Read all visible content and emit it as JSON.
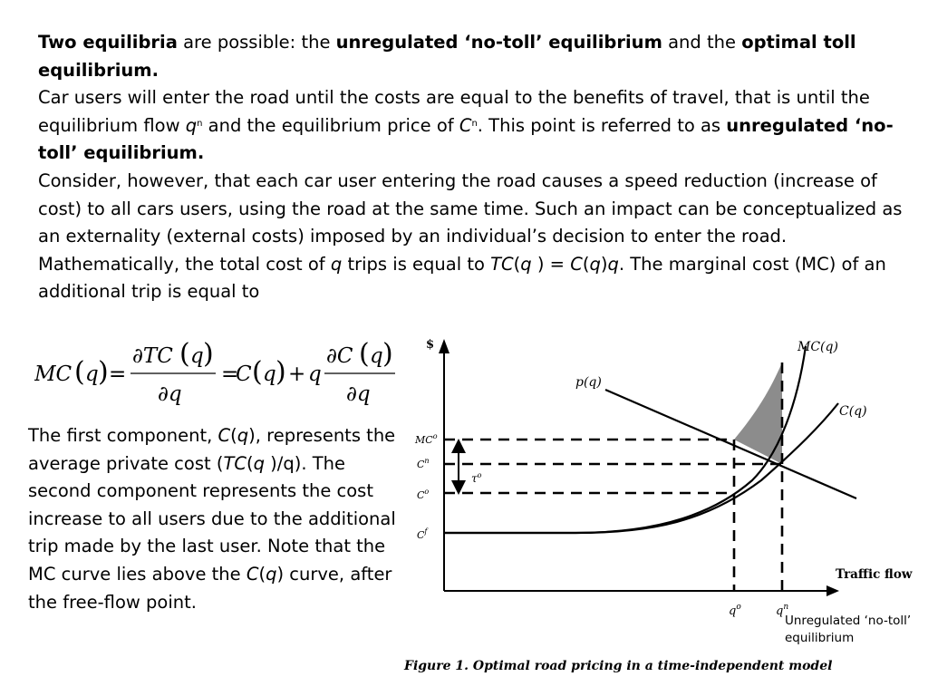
{
  "paragraphs": {
    "p1": {
      "b1": "Two equilibria",
      "t1": " are possible: the ",
      "b2": "unregulated ‘no-toll’ equilibrium",
      "t2": " and the ",
      "b3": "optimal toll equilibrium."
    },
    "p2": {
      "t1": "Car users will enter the road until the costs are equal to the benefits of travel, that is until the equilibrium flow ",
      "qn_base": "q",
      "qn_sup": "n",
      "t2": " and the equilibrium price of ",
      "cn_base": "C",
      "cn_sup": "n",
      "t3": ". This point is referred to as ",
      "b1": "unregulated ‘no-toll’ equilibrium."
    },
    "p3": {
      "t1": "Consider, however, that each car user entering the road causes a speed reduction (increase of cost) to all cars users, using the road at the same time. Such an impact can be conceptualized as an externality (external costs) imposed by an individual’s decision to enter the road."
    },
    "p4": {
      "t1": "Mathematically, the total cost of ",
      "i1": "q",
      "t2": " trips  is  equal to ",
      "i2": "TC",
      "t3": "(",
      "i3": "q",
      "t4": " ) = ",
      "i4": "C",
      "t5": "(",
      "i5": "q",
      "t6": ")",
      "i6": "q",
      "t7": ". The  marginal cost (MC) of  an  additional  trip  is equal to"
    }
  },
  "formula": {
    "mc": "MC",
    "q": "q",
    "paren_l": "(",
    "paren_r": ")",
    "eq": "=",
    "partial_tc": "∂TC",
    "partial_q": "∂q",
    "c": "C",
    "plus": "+",
    "partial_c": "∂C"
  },
  "side_text": {
    "t1": "The first component, ",
    "i1": "C",
    "t2": "(",
    "i2": "q",
    "t3": "), represents the average private cost (",
    "i3": "TC",
    "t4": "(",
    "i4": "q",
    "t5": " )/q). The second component represents the cost increase to all users due to the additional trip made by the last user. Note that the MC curve lies above the ",
    "i5": "C",
    "t6": "(",
    "i6": "q",
    "t7": ") curve, after the free-flow point."
  },
  "figure": {
    "y_axis_label": "$",
    "x_axis_label": "Traffic flow",
    "curve_mc_label": "MC(q)",
    "curve_p_label": "p(q)",
    "curve_c_label": "C(q)",
    "y_tick_mco": "MC",
    "y_tick_mco_sup": "o",
    "y_tick_cn": "C",
    "y_tick_cn_sup": "n",
    "y_tick_co": "C",
    "y_tick_co_sup": "o",
    "y_tick_cf": "C",
    "y_tick_cf_sup": "f",
    "toll_label": "τ",
    "toll_sup": "o",
    "x_tick_qo": "q",
    "x_tick_qo_sup": "o",
    "x_tick_qn": "q",
    "x_tick_qn_sup": "n",
    "caption": "Figure 1. Optimal road pricing in a time-independent model",
    "shade_color": "#8c8c8c"
  },
  "annotation": {
    "line1": "Unregulated ‘no-toll’",
    "line2": "equilibrium"
  }
}
